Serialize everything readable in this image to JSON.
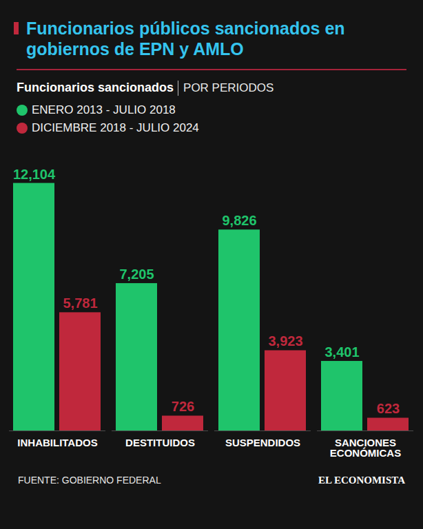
{
  "chart_data": {
    "type": "bar",
    "title": "Funcionarios públicos sancionados en gobiernos de EPN y AMLO",
    "subtitle": "Funcionarios sancionados",
    "subtitle_detail": "POR PERIODOS",
    "source": "FUENTE: GOBIERNO FEDERAL",
    "brand": "EL ECONOMISTA",
    "categories": [
      "INHABILITADOS",
      "DESTITUIDOS",
      "SUSPENDIDOS",
      "SANCIONES ECONÓMICAS"
    ],
    "series": [
      {
        "name": "ENERO 2013 - JULIO 2018",
        "color": "#1fc46b",
        "values": [
          12104,
          7205,
          9826,
          3401
        ],
        "value_labels": [
          "12,104",
          "7,205",
          "9,826",
          "3,401"
        ]
      },
      {
        "name": "DICIEMBRE 2018 - JULIO 2024",
        "color": "#c0283c",
        "values": [
          5781,
          726,
          3923,
          623
        ],
        "value_labels": [
          "5,781",
          "726",
          "3,923",
          "623"
        ]
      }
    ],
    "ylim": [
      0,
      13000
    ],
    "tick_labels": "x",
    "data_labels": true,
    "grid": false,
    "legend": "top-left"
  }
}
